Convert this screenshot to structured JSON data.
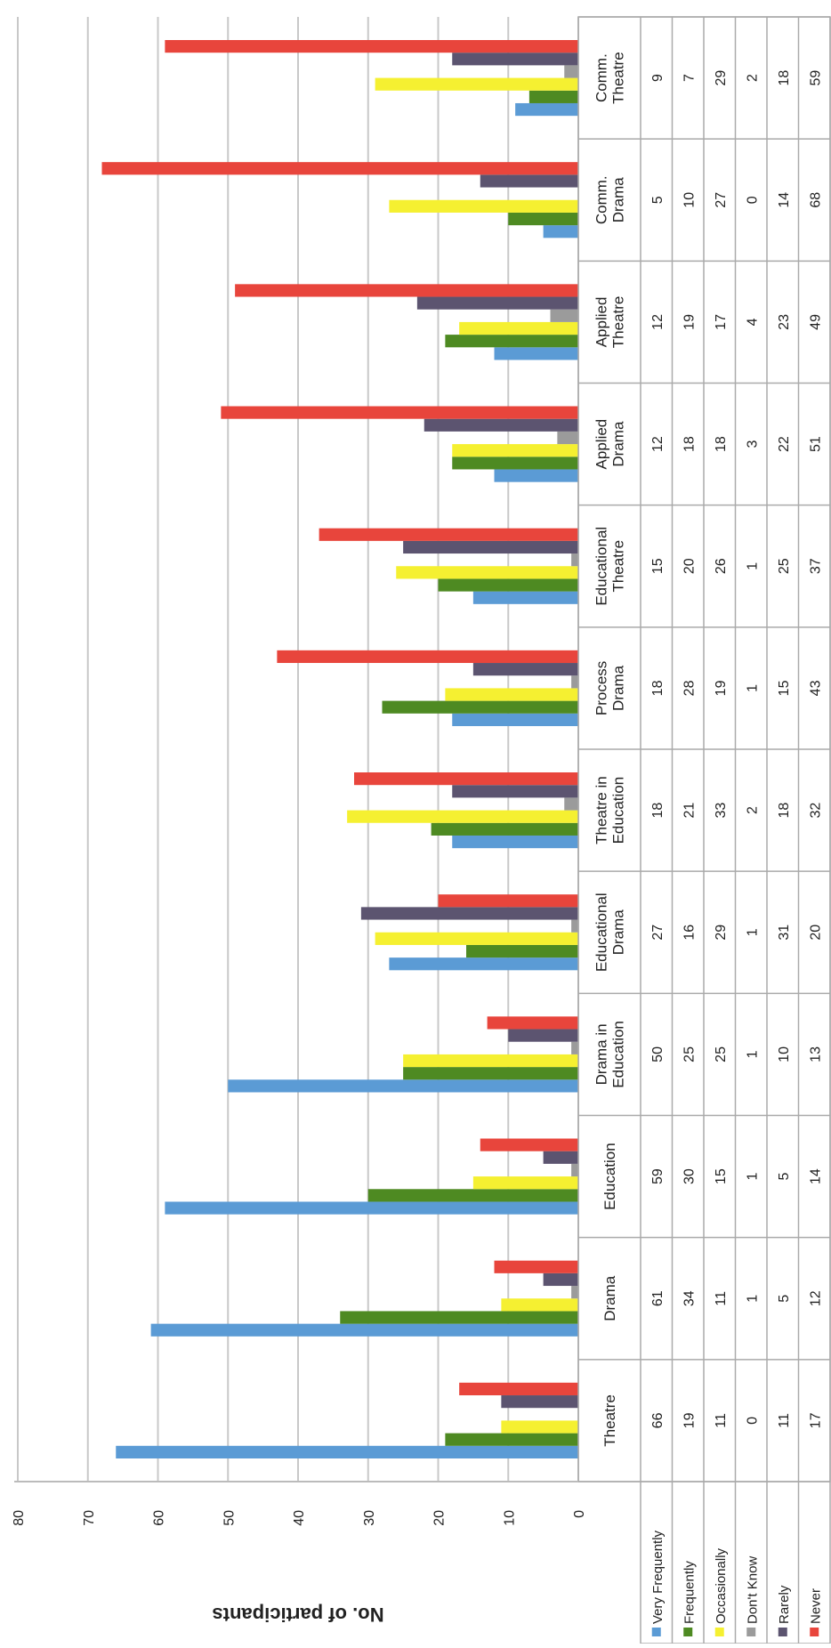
{
  "chart_data": {
    "type": "bar",
    "orientation": "rotated-90-clockwise",
    "ylabel": "No. of participants",
    "ylim": [
      0,
      80
    ],
    "y_ticks": [
      0,
      10,
      20,
      30,
      40,
      50,
      60,
      70,
      80
    ],
    "grid": true,
    "legend": "data-table",
    "categories": [
      [
        "Theatre"
      ],
      [
        "Drama"
      ],
      [
        "Education"
      ],
      [
        "Drama in",
        "Education"
      ],
      [
        "Educational",
        "Drama"
      ],
      [
        "Theatre in",
        "Education"
      ],
      [
        "Process",
        "Drama"
      ],
      [
        "Educational",
        "Theatre"
      ],
      [
        "Applied",
        "Drama"
      ],
      [
        "Applied",
        "Theatre"
      ],
      [
        "Comm.",
        "Drama"
      ],
      [
        "Comm.",
        "Theatre"
      ]
    ],
    "series": [
      {
        "name": "Very Frequently",
        "color": "#5b9bd5",
        "values": [
          66,
          61,
          59,
          50,
          27,
          18,
          18,
          15,
          12,
          12,
          5,
          9
        ]
      },
      {
        "name": "Frequently",
        "color": "#4e8a22",
        "values": [
          19,
          34,
          30,
          25,
          16,
          21,
          28,
          20,
          18,
          19,
          10,
          7
        ]
      },
      {
        "name": "Occasionally",
        "color": "#f5f031",
        "values": [
          11,
          11,
          15,
          25,
          29,
          33,
          19,
          26,
          18,
          17,
          27,
          29
        ]
      },
      {
        "name": "Don't Know",
        "color": "#9b9b9b",
        "values": [
          0,
          1,
          1,
          1,
          1,
          2,
          1,
          1,
          3,
          4,
          0,
          2
        ]
      },
      {
        "name": "Rarely",
        "color": "#5c5470",
        "values": [
          11,
          5,
          5,
          10,
          31,
          18,
          15,
          25,
          22,
          23,
          14,
          18
        ]
      },
      {
        "name": "Never",
        "color": "#e8453c",
        "values": [
          17,
          12,
          14,
          13,
          20,
          32,
          43,
          37,
          51,
          49,
          68,
          59
        ]
      }
    ]
  }
}
